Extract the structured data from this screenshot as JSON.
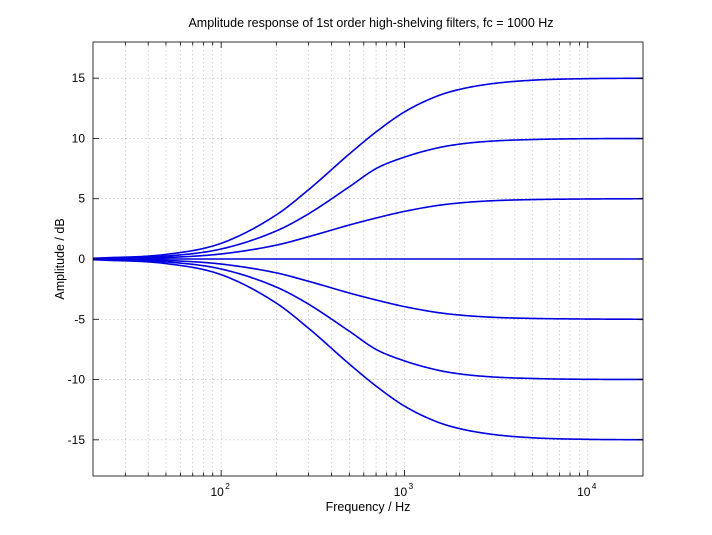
{
  "chart_data": {
    "type": "line",
    "title": "Amplitude response of 1st order high-shelving filters, fc = 1000 Hz",
    "xlabel": "Frequency / Hz",
    "ylabel": "Amplitude / dB",
    "x_scale": "log",
    "xlim": [
      20,
      20000
    ],
    "ylim": [
      -18,
      18
    ],
    "x_ticks": [
      {
        "base": "10",
        "exp": "2",
        "value": 100
      },
      {
        "base": "10",
        "exp": "3",
        "value": 1000
      },
      {
        "base": "10",
        "exp": "4",
        "value": 10000
      }
    ],
    "y_ticks": [
      {
        "label": "-15",
        "value": -15
      },
      {
        "label": "-10",
        "value": -10
      },
      {
        "label": "-5",
        "value": -5
      },
      {
        "label": "0",
        "value": 0
      },
      {
        "label": "5",
        "value": 5
      },
      {
        "label": "10",
        "value": 10
      },
      {
        "label": "15",
        "value": 15
      }
    ],
    "grid": true,
    "line_color": "#0000e0",
    "series": [
      {
        "gain_db": 15,
        "x": [
          20,
          50,
          100,
          200,
          300,
          500,
          700,
          1000,
          1500,
          2000,
          3000,
          5000,
          10000,
          20000
        ],
        "y": [
          0.06,
          0.38,
          1.3,
          3.66,
          5.75,
          8.71,
          10.54,
          12.2,
          13.5,
          14.07,
          14.54,
          14.83,
          14.96,
          14.99
        ]
      },
      {
        "gain_db": 10,
        "x": [
          20,
          50,
          100,
          200,
          300,
          500,
          700,
          1000,
          1500,
          2000,
          3000,
          5000,
          10000,
          20000
        ],
        "y": [
          0.04,
          0.24,
          0.83,
          2.33,
          3.75,
          5.99,
          7.5,
          8.45,
          9.2,
          9.53,
          9.78,
          9.91,
          9.98,
          9.99
        ]
      },
      {
        "gain_db": 5,
        "x": [
          20,
          50,
          100,
          200,
          300,
          500,
          700,
          1000,
          1500,
          2000,
          3000,
          5000,
          10000,
          20000
        ],
        "y": [
          0.02,
          0.12,
          0.42,
          1.15,
          1.85,
          2.82,
          3.4,
          3.95,
          4.43,
          4.65,
          4.83,
          4.93,
          4.98,
          5.0
        ]
      },
      {
        "gain_db": 0,
        "x": [
          20,
          20000
        ],
        "y": [
          0,
          0
        ]
      },
      {
        "gain_db": -5,
        "x": [
          20,
          50,
          100,
          200,
          300,
          500,
          700,
          1000,
          1500,
          2000,
          3000,
          5000,
          10000,
          20000
        ],
        "y": [
          -0.02,
          -0.12,
          -0.42,
          -1.15,
          -1.85,
          -2.82,
          -3.4,
          -3.95,
          -4.43,
          -4.65,
          -4.83,
          -4.93,
          -4.98,
          -5.0
        ]
      },
      {
        "gain_db": -10,
        "x": [
          20,
          50,
          100,
          200,
          300,
          500,
          700,
          1000,
          1500,
          2000,
          3000,
          5000,
          10000,
          20000
        ],
        "y": [
          -0.04,
          -0.24,
          -0.83,
          -2.33,
          -3.75,
          -5.99,
          -7.5,
          -8.45,
          -9.2,
          -9.53,
          -9.78,
          -9.91,
          -9.98,
          -9.99
        ]
      },
      {
        "gain_db": -15,
        "x": [
          20,
          50,
          100,
          200,
          300,
          500,
          700,
          1000,
          1500,
          2000,
          3000,
          5000,
          10000,
          20000
        ],
        "y": [
          -0.06,
          -0.38,
          -1.3,
          -3.66,
          -5.75,
          -8.71,
          -10.54,
          -12.2,
          -13.5,
          -14.07,
          -14.54,
          -14.83,
          -14.96,
          -14.99
        ]
      }
    ]
  }
}
